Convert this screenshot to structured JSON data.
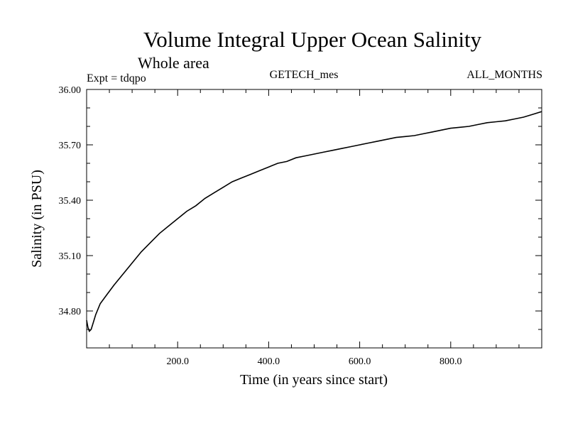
{
  "chart_data": {
    "type": "line",
    "title": "Volume Integral Upper Ocean Salinity",
    "subtitle": "Whole area",
    "experiment": "Expt = tdqpo",
    "field": "GETECH_mes",
    "period": "ALL_MONTHS",
    "xlabel": "Time (in years since start)",
    "ylabel": "Salinity (in PSU)",
    "xlim": [
      0,
      1000
    ],
    "ylim": [
      34.6,
      36.0
    ],
    "x_ticks": [
      200,
      400,
      600,
      800
    ],
    "x_tick_labels": [
      "200.0",
      "400.0",
      "600.0",
      "800.0"
    ],
    "y_ticks": [
      34.8,
      35.1,
      35.4,
      35.7,
      36.0
    ],
    "y_tick_labels": [
      "34.80",
      "35.10",
      "35.40",
      "35.70",
      "36.00"
    ],
    "grid": false,
    "series": [
      {
        "x": [
          0,
          3,
          6,
          10,
          15,
          20,
          30,
          45,
          60,
          80,
          100,
          120,
          140,
          160,
          180,
          200,
          220,
          240,
          260,
          280,
          300,
          320,
          340,
          360,
          380,
          400,
          420,
          440,
          460,
          480,
          500,
          520,
          540,
          560,
          580,
          600,
          620,
          640,
          660,
          680,
          700,
          720,
          740,
          760,
          780,
          800,
          820,
          840,
          860,
          880,
          900,
          920,
          940,
          960,
          980,
          1000
        ],
        "y": [
          34.75,
          34.71,
          34.69,
          34.7,
          34.74,
          34.78,
          34.84,
          34.89,
          34.94,
          35.0,
          35.06,
          35.12,
          35.17,
          35.22,
          35.26,
          35.3,
          35.34,
          35.37,
          35.41,
          35.44,
          35.47,
          35.5,
          35.52,
          35.54,
          35.56,
          35.58,
          35.6,
          35.61,
          35.63,
          35.64,
          35.65,
          35.66,
          35.67,
          35.68,
          35.69,
          35.7,
          35.71,
          35.72,
          35.73,
          35.74,
          35.745,
          35.75,
          35.76,
          35.77,
          35.78,
          35.79,
          35.795,
          35.8,
          35.81,
          35.82,
          35.825,
          35.83,
          35.84,
          35.85,
          35.865,
          35.88
        ]
      }
    ]
  }
}
